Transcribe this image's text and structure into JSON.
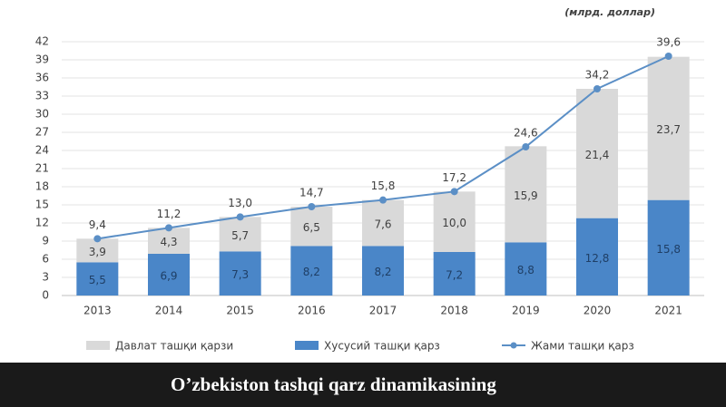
{
  "chart_data": {
    "type": "bar",
    "stacked": true,
    "unit_label": "(млрд. доллар)",
    "categories": [
      "2013",
      "2014",
      "2015",
      "2016",
      "2017",
      "2018",
      "2019",
      "2020",
      "2021"
    ],
    "series": [
      {
        "name": "Давлат ташқи қарзи",
        "type": "bar",
        "color": "#d9d9d9",
        "values": [
          3.9,
          4.3,
          5.7,
          6.5,
          7.6,
          10.0,
          15.9,
          21.4,
          23.7
        ],
        "value_labels": [
          "3,9",
          "4,3",
          "5,7",
          "6,5",
          "7,6",
          "10,0",
          "15,9",
          "21,4",
          "23,7"
        ]
      },
      {
        "name": "Хусусий ташқи қарз",
        "type": "bar",
        "color": "#4a86c8",
        "values": [
          5.5,
          6.9,
          7.3,
          8.2,
          8.2,
          7.2,
          8.8,
          12.8,
          15.8
        ],
        "value_labels": [
          "5,5",
          "6,9",
          "7,3",
          "8,2",
          "8,2",
          "7,2",
          "8,8",
          "12,8",
          "15,8"
        ]
      },
      {
        "name": "Жами ташқи қарз",
        "type": "line",
        "color": "#5b8fc6",
        "values": [
          9.4,
          11.2,
          13.0,
          14.7,
          15.8,
          17.2,
          24.6,
          34.2,
          39.6
        ],
        "value_labels": [
          "9,4",
          "11,2",
          "13,0",
          "14,7",
          "15,8",
          "17,2",
          "24,6",
          "34,2",
          "39,6"
        ]
      }
    ],
    "ylim": [
      0,
      42
    ],
    "yticks": [
      0,
      3,
      6,
      9,
      12,
      15,
      18,
      21,
      24,
      27,
      30,
      33,
      36,
      39,
      42
    ],
    "grid": true
  },
  "caption": "O’zbekiston tashqi qarz dinamikasining"
}
